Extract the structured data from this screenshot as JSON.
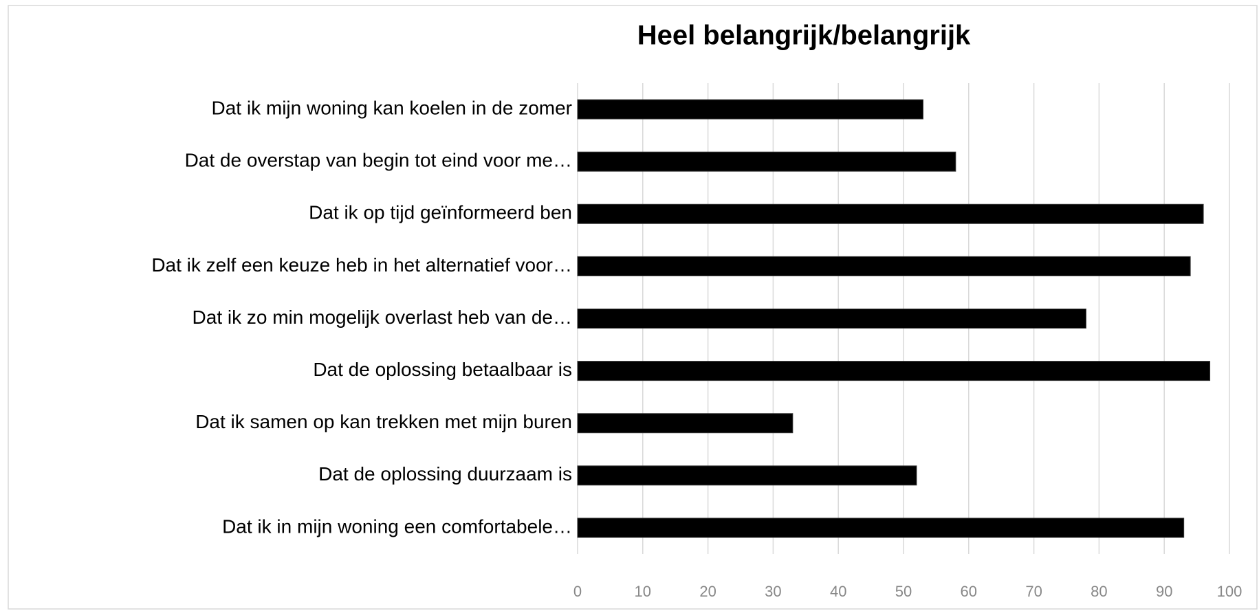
{
  "chart_data": {
    "type": "bar",
    "orientation": "horizontal",
    "title": "Heel belangrijk/belangrijk",
    "categories": [
      "Dat ik mijn woning kan koelen in de zomer",
      "Dat de overstap van begin tot eind voor me…",
      "Dat ik op tijd geïnformeerd ben",
      "Dat ik zelf een keuze heb in het alternatief voor…",
      "Dat ik zo min mogelijk overlast heb van de…",
      "Dat de oplossing betaalbaar is",
      "Dat ik samen op kan trekken met mijn buren",
      "Dat de oplossing duurzaam is",
      "Dat ik in mijn woning een comfortabele…"
    ],
    "values": [
      53,
      58,
      96,
      94,
      78,
      97,
      33,
      52,
      93
    ],
    "color": "#000000",
    "xlim": [
      0,
      100
    ],
    "xticks": [
      0,
      10,
      20,
      30,
      40,
      50,
      60,
      70,
      80,
      90,
      100
    ],
    "grid": true
  }
}
